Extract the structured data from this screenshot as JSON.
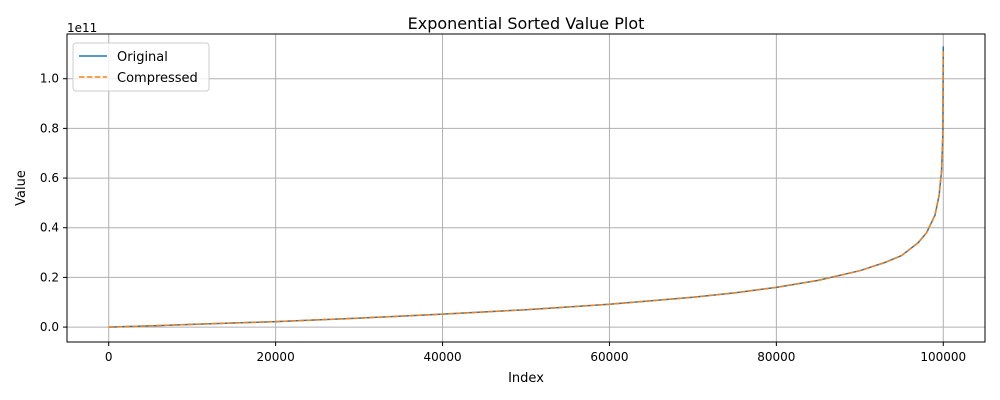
{
  "chart_data": {
    "type": "line",
    "title": "Exponential Sorted Value Plot",
    "xlabel": "Index",
    "ylabel": "Value",
    "y_offset_text": "1e11",
    "xlim": [
      -5000,
      105000
    ],
    "ylim": [
      -0.06,
      1.18
    ],
    "y_scale_note": "values in units of 1e11",
    "grid": true,
    "legend_position": "top-left",
    "x_ticks": [
      0,
      20000,
      40000,
      60000,
      80000,
      100000
    ],
    "x_tick_labels": [
      "0",
      "20000",
      "40000",
      "60000",
      "80000",
      "100000"
    ],
    "y_ticks": [
      0.0,
      0.2,
      0.4,
      0.6,
      0.8,
      1.0
    ],
    "y_tick_labels": [
      "0.0",
      "0.2",
      "0.4",
      "0.6",
      "0.8",
      "1.0"
    ],
    "series": [
      {
        "name": "Original",
        "color": "#1f77b4",
        "style": "solid",
        "x": [
          0,
          5000,
          10000,
          20000,
          30000,
          40000,
          50000,
          60000,
          70000,
          75000,
          80000,
          85000,
          90000,
          93000,
          95000,
          97000,
          98000,
          99000,
          99500,
          99800,
          99950,
          99999
        ],
        "y": [
          0.0,
          0.005,
          0.011,
          0.022,
          0.036,
          0.052,
          0.07,
          0.092,
          0.12,
          0.138,
          0.16,
          0.188,
          0.227,
          0.26,
          0.288,
          0.34,
          0.38,
          0.45,
          0.53,
          0.63,
          0.78,
          1.13
        ]
      },
      {
        "name": "Compressed",
        "color": "#ff7f0e",
        "style": "dashed",
        "x": [
          0,
          5000,
          10000,
          20000,
          30000,
          40000,
          50000,
          60000,
          70000,
          75000,
          80000,
          85000,
          90000,
          93000,
          95000,
          97000,
          98000,
          99000,
          99500,
          99800,
          99950,
          99999
        ],
        "y": [
          0.0,
          0.005,
          0.011,
          0.022,
          0.036,
          0.052,
          0.07,
          0.092,
          0.12,
          0.138,
          0.16,
          0.188,
          0.227,
          0.26,
          0.288,
          0.34,
          0.38,
          0.45,
          0.53,
          0.63,
          0.78,
          1.12
        ]
      }
    ]
  }
}
